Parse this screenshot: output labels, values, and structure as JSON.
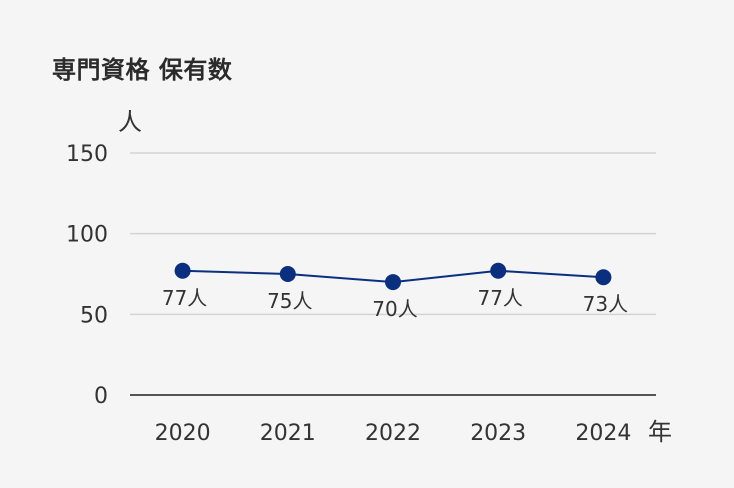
{
  "title": "専門資格 保有数",
  "chart_data": {
    "type": "line",
    "title": "専門資格 保有数",
    "x": [
      "2020",
      "2021",
      "2022",
      "2023",
      "2024"
    ],
    "series": [
      {
        "values": [
          77,
          75,
          70,
          77,
          73
        ]
      }
    ],
    "data_labels": [
      "77人",
      "75人",
      "70人",
      "77人",
      "73人"
    ],
    "y_ticks": [
      "0",
      "50",
      "100",
      "150"
    ],
    "ylim": [
      0,
      150
    ],
    "ylabel": "人",
    "xlabel": "年",
    "grid": true,
    "colors": {
      "line": "#0b2f7f",
      "marker": "#0b2f7f",
      "grid": "#d4d4d4",
      "axis": "#555555"
    }
  }
}
